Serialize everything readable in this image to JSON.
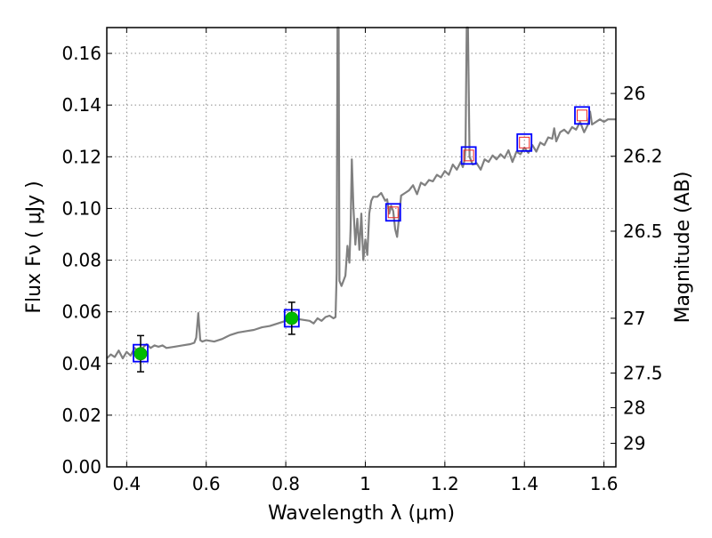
{
  "chart_data": {
    "type": "line",
    "xlabel": "Wavelength  λ (μm)",
    "ylabel": "Flux  Fν  ( μJy )",
    "y2label": "Magnitude (AB)",
    "xlim": [
      0.35,
      1.63
    ],
    "ylim": [
      0.0,
      0.17
    ],
    "grid": true,
    "x_ticks": [
      0.4,
      0.6,
      0.8,
      1.0,
      1.2,
      1.4,
      1.6
    ],
    "x_tick_labels": [
      "0.4",
      "0.6",
      "0.8",
      "1",
      "1.2",
      "1.4",
      "1.6"
    ],
    "y_ticks": [
      0.0,
      0.02,
      0.04,
      0.06,
      0.08,
      0.1,
      0.12,
      0.14,
      0.16
    ],
    "y_tick_labels": [
      "0.00",
      "0.02",
      "0.04",
      "0.06",
      "0.08",
      "0.10",
      "0.12",
      "0.14",
      "0.16"
    ],
    "y2_ticks": [
      {
        "label": "26",
        "flux": 0.1445
      },
      {
        "label": "26.2",
        "flux": 0.1202
      },
      {
        "label": "26.5",
        "flux": 0.0912
      },
      {
        "label": "27",
        "flux": 0.0575
      },
      {
        "label": "27.5",
        "flux": 0.0363
      },
      {
        "label": "28",
        "flux": 0.0229
      },
      {
        "label": "29",
        "flux": 0.0091
      }
    ],
    "colors": {
      "spectrum": "#808080",
      "observed_marker": "#00bb00",
      "model_box": "#0000ff",
      "inner_box": "#ee2222",
      "grid": "#8c8c8c"
    },
    "series": [
      {
        "kind": "spectrum",
        "points": [
          [
            0.35,
            0.042
          ],
          [
            0.36,
            0.0435
          ],
          [
            0.37,
            0.0425
          ],
          [
            0.38,
            0.045
          ],
          [
            0.39,
            0.042
          ],
          [
            0.4,
            0.0445
          ],
          [
            0.41,
            0.043
          ],
          [
            0.42,
            0.046
          ],
          [
            0.43,
            0.0445
          ],
          [
            0.44,
            0.046
          ],
          [
            0.45,
            0.0475
          ],
          [
            0.46,
            0.046
          ],
          [
            0.47,
            0.047
          ],
          [
            0.48,
            0.0465
          ],
          [
            0.49,
            0.047
          ],
          [
            0.5,
            0.046
          ],
          [
            0.52,
            0.0465
          ],
          [
            0.54,
            0.047
          ],
          [
            0.56,
            0.0475
          ],
          [
            0.57,
            0.048
          ],
          [
            0.575,
            0.05
          ],
          [
            0.58,
            0.0595
          ],
          [
            0.585,
            0.049
          ],
          [
            0.59,
            0.0485
          ],
          [
            0.6,
            0.049
          ],
          [
            0.62,
            0.0485
          ],
          [
            0.64,
            0.0495
          ],
          [
            0.66,
            0.051
          ],
          [
            0.68,
            0.052
          ],
          [
            0.7,
            0.0525
          ],
          [
            0.72,
            0.053
          ],
          [
            0.74,
            0.054
          ],
          [
            0.76,
            0.0545
          ],
          [
            0.78,
            0.0555
          ],
          [
            0.8,
            0.0565
          ],
          [
            0.82,
            0.0575
          ],
          [
            0.84,
            0.057
          ],
          [
            0.86,
            0.0565
          ],
          [
            0.87,
            0.0555
          ],
          [
            0.88,
            0.0575
          ],
          [
            0.89,
            0.0565
          ],
          [
            0.9,
            0.058
          ],
          [
            0.91,
            0.0585
          ],
          [
            0.92,
            0.0575
          ],
          [
            0.925,
            0.058
          ],
          [
            0.928,
            0.075
          ],
          [
            0.93,
            0.17
          ],
          [
            0.933,
            0.17
          ],
          [
            0.935,
            0.072
          ],
          [
            0.94,
            0.07
          ],
          [
            0.95,
            0.074
          ],
          [
            0.955,
            0.0855
          ],
          [
            0.96,
            0.079
          ],
          [
            0.963,
            0.092
          ],
          [
            0.966,
            0.119
          ],
          [
            0.97,
            0.1005
          ],
          [
            0.975,
            0.086
          ],
          [
            0.98,
            0.096
          ],
          [
            0.985,
            0.084
          ],
          [
            0.99,
            0.098
          ],
          [
            0.995,
            0.08
          ],
          [
            1.0,
            0.088
          ],
          [
            1.005,
            0.082
          ],
          [
            1.01,
            0.098
          ],
          [
            1.015,
            0.103
          ],
          [
            1.02,
            0.1045
          ],
          [
            1.03,
            0.1045
          ],
          [
            1.04,
            0.106
          ],
          [
            1.05,
            0.103
          ],
          [
            1.055,
            0.1035
          ],
          [
            1.06,
            0.098
          ],
          [
            1.065,
            0.101
          ],
          [
            1.07,
            0.099
          ],
          [
            1.075,
            0.092
          ],
          [
            1.08,
            0.089
          ],
          [
            1.085,
            0.097
          ],
          [
            1.09,
            0.105
          ],
          [
            1.1,
            0.106
          ],
          [
            1.11,
            0.107
          ],
          [
            1.12,
            0.109
          ],
          [
            1.13,
            0.1055
          ],
          [
            1.14,
            0.11
          ],
          [
            1.15,
            0.109
          ],
          [
            1.16,
            0.111
          ],
          [
            1.17,
            0.1105
          ],
          [
            1.18,
            0.113
          ],
          [
            1.19,
            0.112
          ],
          [
            1.2,
            0.1145
          ],
          [
            1.21,
            0.113
          ],
          [
            1.22,
            0.117
          ],
          [
            1.23,
            0.115
          ],
          [
            1.24,
            0.118
          ],
          [
            1.245,
            0.116
          ],
          [
            1.25,
            0.119
          ],
          [
            1.252,
            0.125
          ],
          [
            1.255,
            0.17
          ],
          [
            1.258,
            0.17
          ],
          [
            1.262,
            0.12
          ],
          [
            1.27,
            0.117
          ],
          [
            1.28,
            0.1175
          ],
          [
            1.29,
            0.115
          ],
          [
            1.3,
            0.119
          ],
          [
            1.31,
            0.118
          ],
          [
            1.32,
            0.1205
          ],
          [
            1.33,
            0.119
          ],
          [
            1.34,
            0.121
          ],
          [
            1.35,
            0.1195
          ],
          [
            1.36,
            0.1225
          ],
          [
            1.37,
            0.118
          ],
          [
            1.38,
            0.122
          ],
          [
            1.39,
            0.121
          ],
          [
            1.4,
            0.1235
          ],
          [
            1.41,
            0.1215
          ],
          [
            1.42,
            0.1245
          ],
          [
            1.43,
            0.122
          ],
          [
            1.44,
            0.1255
          ],
          [
            1.45,
            0.1245
          ],
          [
            1.46,
            0.1275
          ],
          [
            1.47,
            0.127
          ],
          [
            1.475,
            0.131
          ],
          [
            1.48,
            0.126
          ],
          [
            1.49,
            0.1295
          ],
          [
            1.5,
            0.1305
          ],
          [
            1.51,
            0.129
          ],
          [
            1.52,
            0.1315
          ],
          [
            1.53,
            0.1305
          ],
          [
            1.54,
            0.1335
          ],
          [
            1.55,
            0.1295
          ],
          [
            1.56,
            0.1325
          ],
          [
            1.565,
            0.1375
          ],
          [
            1.57,
            0.1325
          ],
          [
            1.58,
            0.1335
          ],
          [
            1.59,
            0.1345
          ],
          [
            1.6,
            0.1335
          ],
          [
            1.61,
            0.1345
          ],
          [
            1.62,
            0.1345
          ],
          [
            1.63,
            0.1345
          ]
        ]
      },
      {
        "kind": "observed",
        "points": [
          {
            "x": 0.435,
            "y": 0.0438,
            "yerr": 0.007
          },
          {
            "x": 0.815,
            "y": 0.0575,
            "yerr": 0.0062
          }
        ]
      },
      {
        "kind": "model_photometry",
        "points": [
          {
            "x": 0.435,
            "y": 0.044,
            "inner": false
          },
          {
            "x": 0.815,
            "y": 0.0575,
            "inner": false
          },
          {
            "x": 1.07,
            "y": 0.0985,
            "inner": true
          },
          {
            "x": 1.26,
            "y": 0.1205,
            "inner": true
          },
          {
            "x": 1.4,
            "y": 0.1255,
            "inner": true
          },
          {
            "x": 1.545,
            "y": 0.136,
            "inner": true
          }
        ]
      }
    ]
  }
}
